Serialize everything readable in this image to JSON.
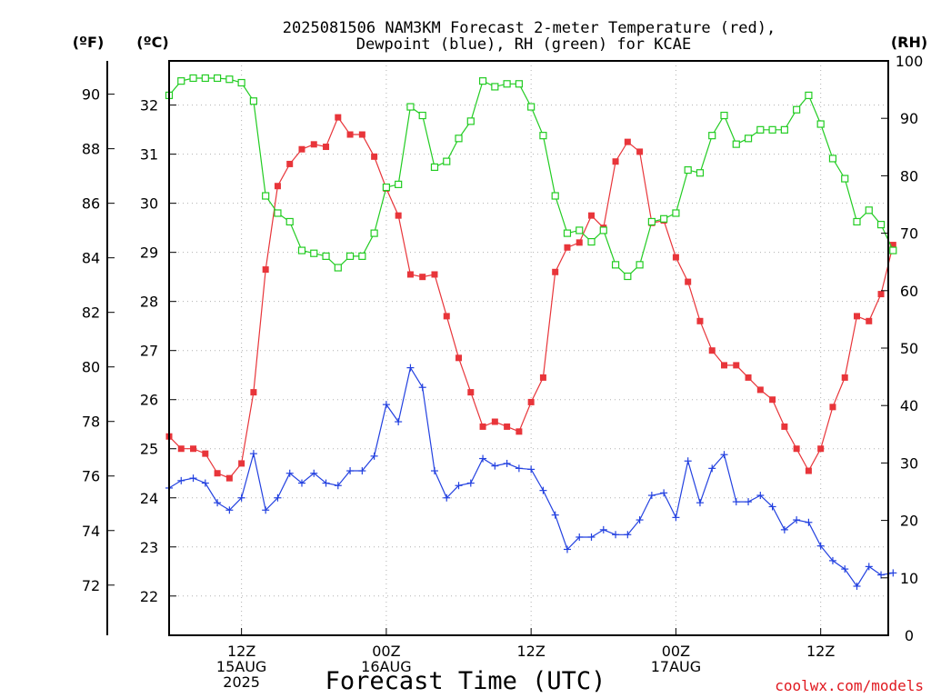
{
  "title_line1": "2025081506 NAM3KM Forecast 2-meter Temperature (red),",
  "title_line2": "Dewpoint (blue), RH (green) for KCAE",
  "unit_f": "(ºF)",
  "unit_c": "(ºC)",
  "unit_rh": "(RH)",
  "x_axis_label": "Forecast Time (UTC)",
  "credit": "coolwx.com/models",
  "colors": {
    "temperature": "#e8353a",
    "dewpoint": "#2341e0",
    "rh": "#22cc22"
  },
  "chart_data": {
    "type": "line",
    "x_start": "2025-08-15 06Z",
    "x_step_hours": 1,
    "x_ticks": [
      {
        "hour": 6,
        "line1": "12Z",
        "line2": "15AUG",
        "line3": "2025"
      },
      {
        "hour": 18,
        "line1": "00Z",
        "line2": "16AUG",
        "line3": ""
      },
      {
        "hour": 30,
        "line1": "12Z",
        "line2": "",
        "line3": ""
      },
      {
        "hour": 42,
        "line1": "00Z",
        "line2": "17AUG",
        "line3": ""
      },
      {
        "hour": 54,
        "line1": "12Z",
        "line2": "",
        "line3": ""
      }
    ],
    "xlim": [
      0,
      59.6
    ],
    "axes": {
      "celsius": {
        "range": [
          21.2,
          32.9
        ],
        "ticks": [
          22,
          23,
          24,
          25,
          26,
          27,
          28,
          29,
          30,
          31,
          32
        ]
      },
      "fahrenheit": {
        "ticks": [
          72,
          74,
          76,
          78,
          80,
          82,
          84,
          86,
          88,
          90
        ]
      },
      "rh": {
        "range": [
          0,
          100
        ],
        "ticks": [
          0,
          10,
          20,
          30,
          40,
          50,
          60,
          70,
          80,
          90,
          100
        ]
      }
    },
    "series": [
      {
        "name": "Temperature",
        "unit": "C",
        "marker": "filled-square",
        "values": [
          25.25,
          25.0,
          25.0,
          24.9,
          24.5,
          24.4,
          24.7,
          26.15,
          28.65,
          30.35,
          30.8,
          31.1,
          31.2,
          31.15,
          31.75,
          31.4,
          31.4,
          30.95,
          30.3,
          29.75,
          28.55,
          28.5,
          28.55,
          27.7,
          26.85,
          26.15,
          25.45,
          25.55,
          25.45,
          25.35,
          25.95,
          26.45,
          28.6,
          29.1,
          29.2,
          29.75,
          29.5,
          30.85,
          31.25,
          31.05,
          29.6,
          29.65,
          28.9,
          28.4,
          27.6,
          27.0,
          26.7,
          26.7,
          26.45,
          26.2,
          26.0,
          25.45,
          25.0,
          24.55,
          25.0,
          25.85,
          26.45,
          27.7,
          27.6,
          28.15,
          29.15
        ]
      },
      {
        "name": "Dewpoint",
        "unit": "C",
        "marker": "plus",
        "values": [
          24.2,
          24.35,
          24.4,
          24.3,
          23.9,
          23.75,
          24.0,
          24.9,
          23.75,
          24.0,
          24.5,
          24.3,
          24.5,
          24.3,
          24.25,
          24.55,
          24.55,
          24.85,
          25.9,
          25.55,
          26.65,
          26.25,
          24.55,
          24.0,
          24.25,
          24.3,
          24.8,
          24.65,
          24.7,
          24.6,
          24.58,
          24.15,
          23.65,
          22.95,
          23.2,
          23.2,
          23.35,
          23.25,
          23.25,
          23.55,
          24.05,
          24.1,
          23.6,
          24.75,
          23.9,
          24.6,
          24.88,
          23.92,
          23.92,
          24.05,
          23.82,
          23.35,
          23.55,
          23.5,
          23.02,
          22.72,
          22.55,
          22.2,
          22.6,
          22.43,
          22.47
        ]
      },
      {
        "name": "RH",
        "unit": "%",
        "marker": "open-square",
        "values": [
          94,
          96.5,
          97,
          97,
          97,
          96.8,
          96.2,
          93,
          76.5,
          73.5,
          72,
          67,
          66.5,
          66,
          64,
          66,
          66,
          70,
          78,
          78.5,
          92,
          90.5,
          81.5,
          82.5,
          86.5,
          89.5,
          96.5,
          95.5,
          96,
          96,
          92,
          87,
          76.5,
          70,
          70.5,
          68.5,
          70.5,
          64.5,
          62.5,
          64.5,
          72,
          72.5,
          73.5,
          81,
          80.5,
          87,
          90.5,
          85.5,
          86.5,
          88,
          88,
          88,
          91.5,
          94,
          89,
          83,
          79.5,
          72,
          74,
          71.5,
          67
        ]
      }
    ]
  }
}
